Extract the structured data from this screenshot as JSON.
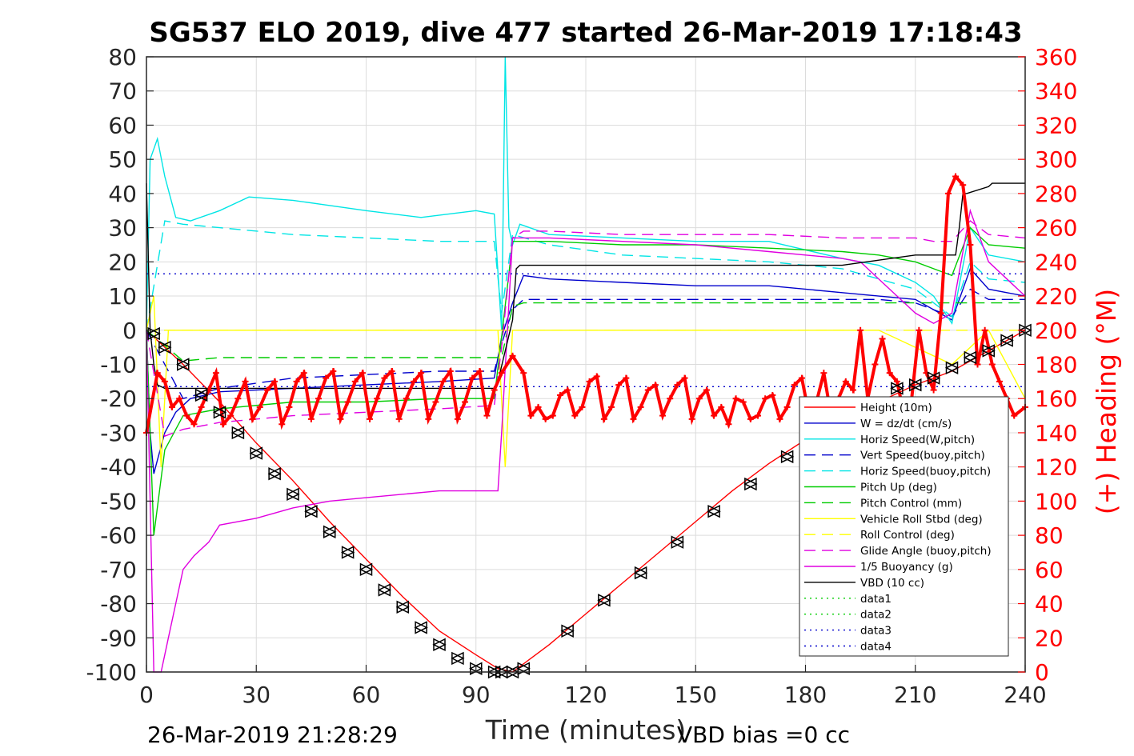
{
  "chart_data": {
    "type": "line",
    "title": "SG537 ELO 2019, dive 477 started 26-Mar-2019 17:18:43",
    "xlabel": "Time (minutes)",
    "ylabel": "",
    "y2label": "(+) Heading (°M)",
    "footer_left": "26-Mar-2019 21:28:29",
    "footer_right": "VBD bias =0 cc",
    "xlim": [
      0,
      240
    ],
    "ylim": [
      -100,
      80
    ],
    "y2lim": [
      0,
      360
    ],
    "x_ticks": [
      0,
      30,
      60,
      90,
      120,
      150,
      180,
      210,
      240
    ],
    "y_ticks": [
      -100,
      -90,
      -80,
      -70,
      -60,
      -50,
      -40,
      -30,
      -20,
      -10,
      0,
      10,
      20,
      30,
      40,
      50,
      60,
      70,
      80
    ],
    "y2_ticks": [
      0,
      20,
      40,
      60,
      80,
      100,
      120,
      140,
      160,
      180,
      200,
      220,
      240,
      260,
      280,
      300,
      320,
      340,
      360
    ],
    "grid": true,
    "legend_position": "lower-right",
    "colors": {
      "axis": "#262626",
      "grid": "#dcdcdc",
      "heading": "#ff0000",
      "height": "#ff0000",
      "w": "#0000cc",
      "horiz_speed": "#00e5e5",
      "pitch": "#00cc00",
      "roll": "#ffff00",
      "glide": "#e000e0",
      "vbd": "#000000"
    },
    "series": [
      {
        "name": "Height (10m)",
        "style": "solid",
        "color": "#ff0000",
        "x": [
          0,
          10,
          20,
          30,
          40,
          50,
          60,
          70,
          80,
          90,
          96,
          100,
          110,
          120,
          130,
          140,
          150,
          160,
          170,
          180,
          190,
          200,
          210,
          220,
          230,
          240
        ],
        "y": [
          0,
          -10,
          -21,
          -33,
          -44,
          -56,
          -67,
          -78,
          -88,
          -95,
          -99,
          -100,
          -92,
          -83,
          -74,
          -65,
          -56,
          -47,
          -39,
          -32,
          -27,
          -21,
          -16,
          -12,
          -6,
          0
        ]
      },
      {
        "name": "W = dz/dt (cm/s)",
        "style": "solid",
        "color": "#0000cc",
        "x": [
          0,
          1,
          2,
          3,
          5,
          8,
          12,
          20,
          40,
          60,
          80,
          95,
          97,
          100,
          103,
          110,
          130,
          150,
          170,
          190,
          200,
          210,
          215,
          220,
          225,
          230,
          235,
          240
        ],
        "y": [
          0,
          -30,
          -42,
          -38,
          -30,
          -24,
          -20,
          -18,
          -17,
          -16,
          -15,
          -14,
          -2,
          8,
          16,
          15,
          14,
          13,
          13,
          11,
          10,
          9,
          6,
          3,
          18,
          12,
          11,
          10
        ]
      },
      {
        "name": "Horiz Speed(W,pitch)",
        "style": "solid",
        "color": "#00e5e5",
        "x": [
          0,
          1,
          3,
          5,
          8,
          12,
          20,
          28,
          40,
          60,
          75,
          90,
          95,
          97,
          98,
          99,
          100,
          102,
          110,
          130,
          150,
          170,
          190,
          200,
          210,
          215,
          220,
          225,
          230,
          240
        ],
        "y": [
          0,
          50,
          56,
          45,
          33,
          32,
          35,
          39,
          38,
          35,
          33,
          35,
          34,
          0,
          80,
          30,
          25,
          31,
          28,
          27,
          26,
          26,
          21,
          19,
          14,
          10,
          2,
          30,
          22,
          20
        ]
      },
      {
        "name": "Vert Speed(buoy,pitch)",
        "style": "dashed",
        "color": "#0000cc",
        "x": [
          0,
          10,
          20,
          40,
          60,
          80,
          95,
          97,
          100,
          103,
          110,
          130,
          150,
          170,
          190,
          200,
          210,
          215,
          220,
          225,
          230,
          240
        ],
        "y": [
          0,
          -20,
          -17,
          -14,
          -13,
          -12,
          -12,
          -4,
          6,
          9,
          9,
          9,
          9,
          9,
          9,
          9,
          8,
          6,
          4,
          12,
          9,
          9
        ]
      },
      {
        "name": "Horiz Speed(buoy,pitch)",
        "style": "dashed",
        "color": "#00e5e5",
        "x": [
          0,
          5,
          10,
          20,
          40,
          60,
          80,
          95,
          97,
          100,
          110,
          130,
          150,
          170,
          190,
          200,
          210,
          215,
          220,
          225,
          230,
          240
        ],
        "y": [
          0,
          32,
          31,
          30,
          28,
          27,
          26,
          26,
          5,
          28,
          25,
          22,
          21,
          20,
          18,
          15,
          12,
          8,
          4,
          20,
          15,
          14
        ]
      },
      {
        "name": "Pitch Up (deg)",
        "style": "solid",
        "color": "#00cc00",
        "x": [
          0,
          2,
          5,
          10,
          20,
          40,
          60,
          80,
          95,
          97,
          100,
          110,
          130,
          150,
          170,
          190,
          200,
          210,
          215,
          220,
          225,
          230,
          240
        ],
        "y": [
          0,
          -60,
          -35,
          -25,
          -23,
          -21,
          -21,
          -20,
          -20,
          -2,
          26,
          26,
          25,
          25,
          24,
          23,
          22,
          20,
          18,
          16,
          30,
          25,
          24
        ]
      },
      {
        "name": "Pitch Control (mm)",
        "style": "dashed",
        "color": "#00cc00",
        "x": [
          0,
          10,
          20,
          40,
          60,
          80,
          95,
          97,
          100,
          103,
          240
        ],
        "y": [
          0,
          -9,
          -8,
          -8,
          -8,
          -8,
          -8,
          -8,
          7,
          8,
          8
        ]
      },
      {
        "name": "Vehicle Roll Stbd (deg)",
        "style": "solid",
        "color": "#ffff00",
        "x": [
          0,
          2,
          4,
          6,
          10,
          15,
          25,
          35,
          50,
          70,
          90,
          96,
          98,
          100,
          120,
          140,
          160,
          180,
          200,
          220,
          230,
          240
        ],
        "y": [
          0,
          10,
          -40,
          0,
          0,
          0,
          0,
          0,
          0,
          0,
          0,
          0,
          -40,
          0,
          0,
          0,
          0,
          0,
          0,
          -10,
          0,
          -20
        ]
      },
      {
        "name": "Roll Control (deg)",
        "style": "dashed",
        "color": "#ffff00",
        "x": [
          0,
          50,
          95,
          100,
          200,
          240
        ],
        "y": [
          0,
          0,
          0,
          0,
          0,
          0
        ]
      },
      {
        "name": "Glide Angle (buoy,pitch)",
        "style": "dashed",
        "color": "#e000e0",
        "x": [
          0,
          5,
          10,
          20,
          40,
          60,
          80,
          95,
          97,
          100,
          103,
          110,
          130,
          150,
          170,
          190,
          200,
          210,
          215,
          220,
          225,
          230,
          240
        ],
        "y": [
          0,
          -31,
          -29,
          -27,
          -25,
          -24,
          -23,
          -22,
          -5,
          27,
          29,
          29,
          28,
          28,
          28,
          27,
          27,
          27,
          26,
          26,
          32,
          28,
          27
        ]
      },
      {
        "name": "1/5 Buoyancy (g)",
        "style": "solid",
        "color": "#e000e0",
        "x": [
          0,
          2,
          4,
          6,
          8,
          10,
          13,
          17,
          20,
          30,
          40,
          50,
          60,
          70,
          80,
          90,
          96,
          97,
          100,
          110,
          130,
          150,
          170,
          190,
          195,
          200,
          210,
          215,
          220,
          225,
          230,
          240
        ],
        "y": [
          0,
          -100,
          -100,
          -90,
          -80,
          -70,
          -66,
          -62,
          -57,
          -55,
          -52,
          -50,
          -49,
          -48,
          -47,
          -47,
          -47,
          -30,
          27,
          27,
          26,
          25,
          23,
          21,
          20,
          15,
          5,
          2,
          5,
          35,
          20,
          10
        ]
      },
      {
        "name": "VBD (10 cc)",
        "style": "solid",
        "color": "#000000",
        "x": [
          0,
          1,
          2,
          3,
          5,
          10,
          20,
          40,
          60,
          80,
          90,
          95,
          96,
          100,
          101,
          102,
          110,
          130,
          150,
          170,
          190,
          210,
          220,
          221,
          222,
          223,
          224,
          230,
          231,
          240
        ],
        "y": [
          43,
          0,
          -10,
          -16,
          -17,
          -17,
          -17,
          -17,
          -17,
          -17,
          -17,
          -17,
          -15,
          3,
          18,
          19,
          19,
          19,
          19,
          19,
          19,
          22,
          22,
          22,
          30,
          40,
          40,
          42,
          43,
          43
        ]
      },
      {
        "name": "data1",
        "style": "dotted",
        "color": "#00cc00",
        "x": [],
        "y": []
      },
      {
        "name": "data2",
        "style": "dotted",
        "color": "#00cc00",
        "x": [],
        "y": []
      },
      {
        "name": "data3",
        "style": "dotted",
        "color": "#0000cc",
        "x": [
          0,
          240
        ],
        "y": [
          16.5,
          16.5
        ]
      },
      {
        "name": "data4",
        "style": "dotted",
        "color": "#0000cc",
        "x": [
          0,
          240
        ],
        "y": [
          -16.5,
          -16.5
        ]
      }
    ],
    "heading": {
      "axis": "right",
      "color": "#ff0000",
      "x": [
        0,
        3,
        5,
        7,
        9,
        11,
        13,
        15,
        17,
        19,
        21,
        23,
        25,
        27,
        29,
        31,
        33,
        35,
        37,
        39,
        41,
        43,
        45,
        47,
        49,
        51,
        53,
        55,
        57,
        59,
        61,
        63,
        65,
        67,
        69,
        71,
        73,
        75,
        77,
        79,
        81,
        83,
        85,
        87,
        89,
        91,
        93,
        95,
        97,
        100,
        103,
        105,
        107,
        109,
        111,
        113,
        115,
        117,
        119,
        121,
        123,
        125,
        127,
        129,
        131,
        133,
        135,
        137,
        139,
        141,
        143,
        145,
        147,
        149,
        151,
        153,
        155,
        157,
        159,
        161,
        163,
        165,
        167,
        169,
        171,
        173,
        175,
        177,
        179,
        181,
        183,
        185,
        187,
        189,
        191,
        193,
        195,
        197,
        199,
        201,
        203,
        205,
        207,
        209,
        211,
        213,
        215,
        217,
        219,
        221,
        223,
        225,
        227,
        229,
        231,
        233,
        235,
        237,
        240
      ],
      "y": [
        140,
        175,
        170,
        155,
        160,
        150,
        145,
        155,
        165,
        175,
        145,
        150,
        160,
        170,
        148,
        155,
        165,
        170,
        145,
        155,
        170,
        175,
        148,
        160,
        172,
        176,
        148,
        158,
        170,
        175,
        148,
        160,
        172,
        176,
        148,
        160,
        170,
        175,
        148,
        158,
        170,
        176,
        148,
        158,
        172,
        176,
        150,
        165,
        175,
        185,
        175,
        150,
        155,
        148,
        150,
        162,
        165,
        150,
        155,
        170,
        173,
        148,
        155,
        168,
        172,
        148,
        155,
        165,
        168,
        150,
        160,
        168,
        172,
        148,
        160,
        165,
        150,
        155,
        145,
        160,
        158,
        148,
        150,
        160,
        162,
        148,
        155,
        168,
        172,
        150,
        158,
        175,
        150,
        160,
        170,
        165,
        200,
        160,
        180,
        195,
        175,
        170,
        150,
        160,
        200,
        175,
        165,
        210,
        280,
        290,
        285,
        250,
        180,
        200,
        180,
        170,
        160,
        150,
        155
      ]
    },
    "height_markers": {
      "x": [
        2,
        5,
        10,
        15,
        20,
        25,
        30,
        35,
        40,
        45,
        50,
        55,
        60,
        65,
        70,
        75,
        80,
        85,
        90,
        95,
        97,
        100,
        103,
        115,
        125,
        135,
        145,
        155,
        165,
        175,
        185,
        195,
        205,
        210,
        215,
        220,
        225,
        230,
        235,
        240
      ],
      "y": [
        -1,
        -5,
        -10,
        -19,
        -24,
        -30,
        -36,
        -42,
        -48,
        -53,
        -59,
        -65,
        -70,
        -76,
        -81,
        -87,
        -92,
        -96,
        -99,
        -100,
        -100,
        -100,
        -99,
        -88,
        -79,
        -71,
        -62,
        -53,
        -45,
        -37,
        -29,
        -22,
        -17,
        -16,
        -14,
        -11,
        -8,
        -6,
        -3,
        0
      ]
    }
  }
}
